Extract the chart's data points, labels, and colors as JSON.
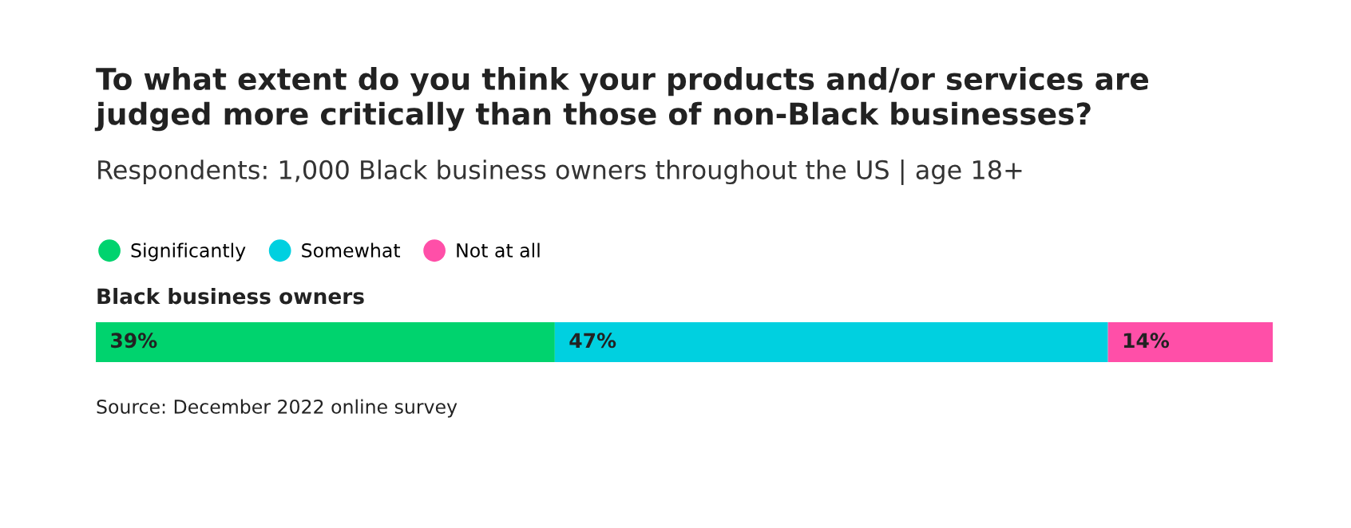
{
  "chart_data": {
    "type": "bar",
    "orientation": "horizontal",
    "stacked": true,
    "title": "To what extent do you think your products and/or services are\njudged more critically than those of non-Black businesses?",
    "subtitle": "Respondents: 1,000 Black business owners throughout the US | age 18+",
    "categories": [
      "Black business owners"
    ],
    "series": [
      {
        "name": "Significantly",
        "color": "#00d36e",
        "values": [
          39
        ],
        "value_labels": [
          "39%"
        ]
      },
      {
        "name": "Somewhat",
        "color": "#00d0e0",
        "values": [
          47
        ],
        "value_labels": [
          "47%"
        ]
      },
      {
        "name": "Not at all",
        "color": "#ff4fa8",
        "values": [
          14
        ],
        "value_labels": [
          "14%"
        ]
      }
    ],
    "legend": "top left",
    "marker": "circle",
    "annotations": [
      "Source: December 2022 online survey"
    ]
  }
}
